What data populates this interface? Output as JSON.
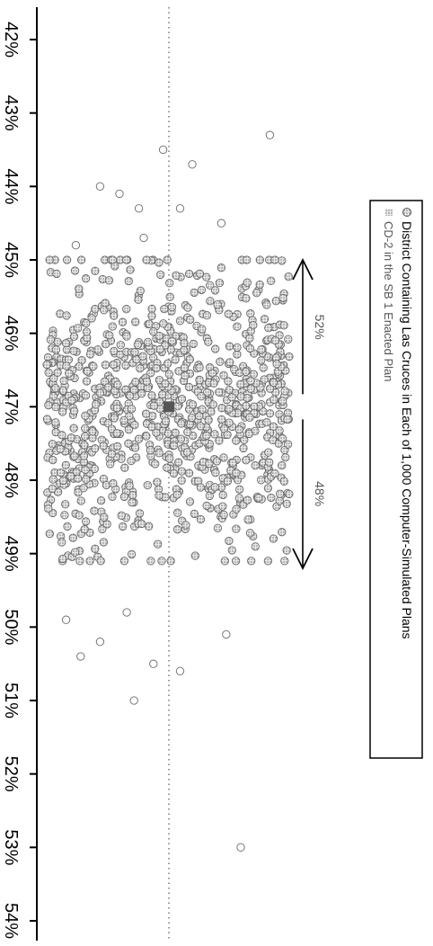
{
  "chart_data": {
    "type": "scatter",
    "orientation": "rotated-90-clockwise",
    "x_axis": {
      "ticks": [
        "42%",
        "43%",
        "44%",
        "45%",
        "46%",
        "47%",
        "48%",
        "49%",
        "50%",
        "51%",
        "52%",
        "53%",
        "54%"
      ],
      "range": [
        42,
        54
      ]
    },
    "reference_line": {
      "value": 47.0,
      "style": "dotted"
    },
    "series": [
      {
        "name": "District Containing Las Cruces in Each of 1,000 Computer-Simulated Plans",
        "marker": "open-circle",
        "outliers": [
          {
            "x": 43.3,
            "y": 0.92
          },
          {
            "x": 43.5,
            "y": 0.48
          },
          {
            "x": 43.7,
            "y": 0.6
          },
          {
            "x": 44.0,
            "y": 0.22
          },
          {
            "x": 44.1,
            "y": 0.3
          },
          {
            "x": 44.3,
            "y": 0.38
          },
          {
            "x": 44.3,
            "y": 0.55
          },
          {
            "x": 44.5,
            "y": 0.72
          },
          {
            "x": 44.7,
            "y": 0.4
          },
          {
            "x": 44.8,
            "y": 0.12
          },
          {
            "x": 49.8,
            "y": 0.33
          },
          {
            "x": 49.9,
            "y": 0.08
          },
          {
            "x": 50.1,
            "y": 0.74
          },
          {
            "x": 50.2,
            "y": 0.22
          },
          {
            "x": 50.4,
            "y": 0.14
          },
          {
            "x": 50.5,
            "y": 0.44
          },
          {
            "x": 50.6,
            "y": 0.55
          },
          {
            "x": 51.0,
            "y": 0.36
          },
          {
            "x": 53.0,
            "y": 0.8
          }
        ]
      },
      {
        "name": "CD-2 in the SB 1 Enacted Plan",
        "marker": "filled",
        "x": 47.0
      }
    ],
    "annotations": [
      {
        "text": "52%",
        "arrow_from": 47.0,
        "arrow_to": 45.0
      },
      {
        "text": "48%",
        "arrow_from": 47.0,
        "arrow_to": 49.2
      }
    ],
    "legend": {
      "placement": "right",
      "entries": [
        "District Containing Las Cruces in Each of 1,000 Computer-Simulated Plans",
        "CD-2 in the SB 1 Enacted Plan"
      ]
    },
    "grid": false
  }
}
